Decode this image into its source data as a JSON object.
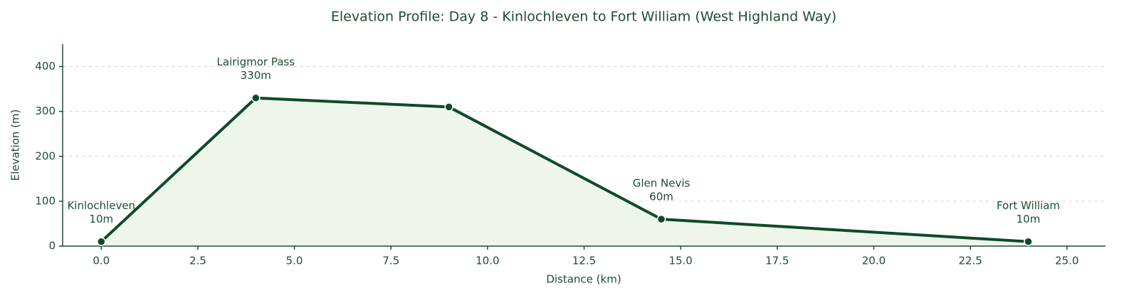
{
  "chart_data": {
    "type": "line",
    "title": "Elevation Profile: Day 8 - Kinlochleven to Fort William (West Highland Way)",
    "x_label": "Distance (km)",
    "y_label": "Elevation (m)",
    "x": [
      0,
      4,
      9,
      14.5,
      24
    ],
    "values": [
      10,
      330,
      310,
      60,
      10
    ],
    "point_labels": [
      "Kinlochleven",
      "Lairigmor Pass",
      null,
      "Glen Nevis",
      "Fort William"
    ],
    "value_labels": [
      "10m",
      "330m",
      null,
      "60m",
      "10m"
    ],
    "color": "#0f4a2a",
    "fill_color": "#eef6ec",
    "xlim": [
      -1,
      26
    ],
    "xticks": [
      {
        "value": 0,
        "label": "0.0"
      },
      2.5,
      {
        "value": 5,
        "label": "5.0"
      },
      7.5,
      {
        "value": 10,
        "label": "10.0"
      },
      12.5,
      {
        "value": 15,
        "label": "15.0"
      },
      17.5,
      {
        "value": 20,
        "label": "20.0"
      },
      22.5,
      {
        "value": 25,
        "label": "25.0"
      }
    ],
    "ylim": [
      0,
      450
    ],
    "yticks": [
      0,
      100,
      200,
      300,
      400
    ],
    "grid": true
  }
}
